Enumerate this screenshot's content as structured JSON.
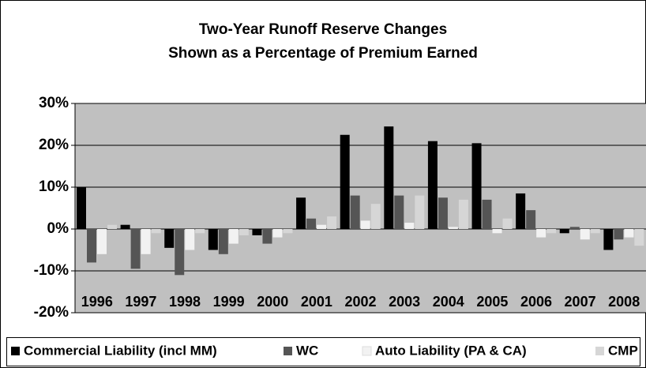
{
  "chart_data": {
    "type": "bar",
    "title": "Two-Year Runoff Reserve Changes",
    "subtitle": "Shown as a Percentage of Premium Earned",
    "categories": [
      "1996",
      "1997",
      "1998",
      "1999",
      "2000",
      "2001",
      "2002",
      "2003",
      "2004",
      "2005",
      "2006",
      "2007",
      "2008"
    ],
    "series": [
      {
        "name": "Commercial Liability (incl MM)",
        "color": "#000000",
        "values": [
          10,
          1,
          -4.5,
          -5,
          -1.5,
          7.5,
          22.5,
          24.5,
          21,
          20.5,
          8.5,
          -1,
          -5
        ]
      },
      {
        "name": "WC",
        "color": "#555555",
        "values": [
          -8,
          -9.5,
          -11,
          -6,
          -3.5,
          2.5,
          8,
          8,
          7.5,
          7,
          4.5,
          0.5,
          -2.5
        ]
      },
      {
        "name": "Auto Liability (PA & CA)",
        "color": "#f2f2f2",
        "values": [
          -6,
          -6,
          -5,
          -3.5,
          -2,
          1,
          2,
          1.5,
          0.5,
          -1,
          -2,
          -2.5,
          -2
        ]
      },
      {
        "name": "CMP",
        "color": "#d6d6d6",
        "values": [
          1,
          -1,
          -1,
          -1.5,
          -1,
          3,
          6,
          8,
          7,
          2.5,
          -1,
          -1,
          -4
        ]
      }
    ],
    "ylim": [
      -20,
      30
    ],
    "yticks": [
      {
        "value": -20,
        "label": "-20%"
      },
      {
        "value": -10,
        "label": "-10%"
      },
      {
        "value": 0,
        "label": "0%"
      },
      {
        "value": 10,
        "label": "10%"
      },
      {
        "value": 20,
        "label": "20%"
      },
      {
        "value": 30,
        "label": "30%"
      }
    ],
    "grid": true
  }
}
